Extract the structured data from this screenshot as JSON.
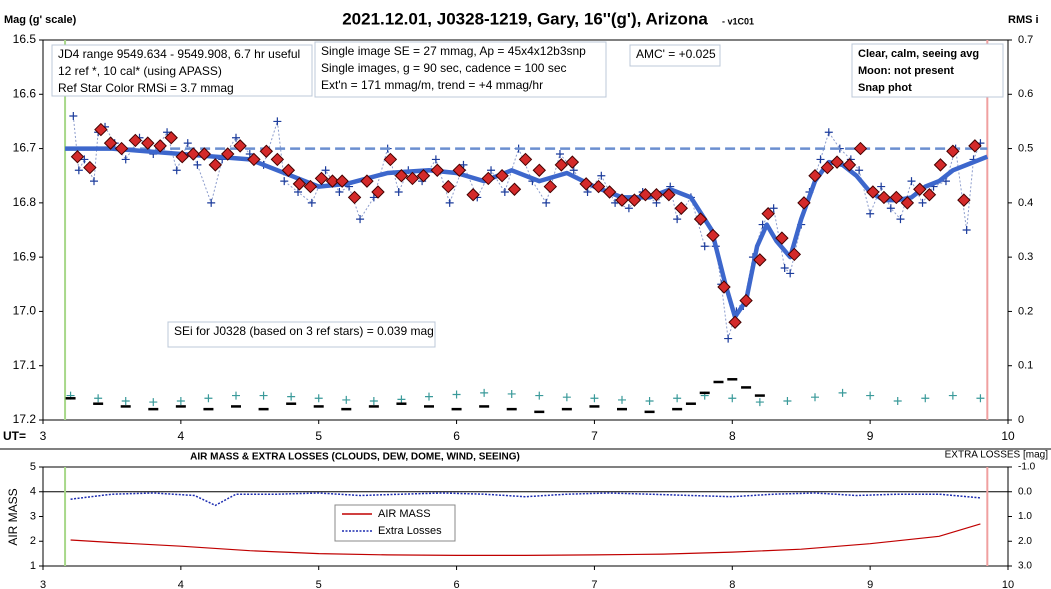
{
  "chart_data": [
    {
      "type": "line",
      "title": "2021.12.01, J0328-1219, Gary, 16''(g'), Arizona",
      "subtitle": "- v1C01",
      "ylabel": "Mag (g' scale)",
      "y2label": "RMS i",
      "xlabel": "UT=",
      "xlim": [
        3,
        10
      ],
      "xticks": [
        3,
        4,
        5,
        6,
        7,
        8,
        9,
        10
      ],
      "ylim": [
        16.5,
        17.2
      ],
      "y_inverted": true,
      "yticks": [
        16.5,
        16.6,
        16.7,
        16.8,
        16.9,
        {
          "value": 17,
          "label": "17.0"
        },
        17.1,
        17.2
      ],
      "y2lim": [
        0,
        0.7
      ],
      "y2ticks": [
        0.7,
        0.6,
        0.5,
        0.4,
        0.3,
        0.2,
        0.1,
        0
      ],
      "vlines": [
        {
          "x": 3.16,
          "color": "#a8d88a"
        },
        {
          "x": 9.85,
          "color": "#f0a0a0"
        }
      ],
      "annotations": [
        [
          "JD4 range 9549.634 - 9549.908, 6.7 hr useful",
          "12 ref *, 10 cal* (using APASS)",
          "Ref Star Color RMSi = 3.7 mmag"
        ],
        [
          "Single image SE = 27 mmag, Ap = 45x4x12b3snp",
          "Single images, g = 90 sec, cadence = 100 sec",
          "Ext'n = 171 mmag/m, trend = +4 mmag/hr"
        ],
        [
          "AMC' = +0.025"
        ],
        [
          "Clear, calm, seeing avg",
          "Moon: not present",
          "Snap phot"
        ],
        [
          "SEi for J0328 (based on 3 ref stars) = 0.039 mag"
        ]
      ],
      "series": [
        {
          "style": "cross-dotted",
          "color": "#1c3c9c",
          "x": [
            3.22,
            3.26,
            3.3,
            3.37,
            3.4,
            3.45,
            3.52,
            3.6,
            3.7,
            3.8,
            3.9,
            3.97,
            4.05,
            4.12,
            4.22,
            4.3,
            4.4,
            4.5,
            4.6,
            4.7,
            4.75,
            4.85,
            4.95,
            5.05,
            5.15,
            5.22,
            5.3,
            5.4,
            5.5,
            5.58,
            5.65,
            5.75,
            5.85,
            5.95,
            6.05,
            6.15,
            6.25,
            6.35,
            6.45,
            6.55,
            6.65,
            6.75,
            6.85,
            6.95,
            7.05,
            7.15,
            7.25,
            7.35,
            7.45,
            7.55,
            7.6,
            7.7,
            7.8,
            7.88,
            7.92,
            7.97,
            8.03,
            8.08,
            8.15,
            8.22,
            8.3,
            8.38,
            8.42,
            8.5,
            8.56,
            8.64,
            8.7,
            8.78,
            8.86,
            8.92,
            9.0,
            9.08,
            9.15,
            9.22,
            9.3,
            9.38,
            9.46,
            9.55,
            9.62,
            9.7,
            9.75,
            9.8
          ],
          "values": [
            16.64,
            16.74,
            16.72,
            16.76,
            16.67,
            16.66,
            16.69,
            16.72,
            16.68,
            16.71,
            16.67,
            16.74,
            16.69,
            16.73,
            16.8,
            16.72,
            16.68,
            16.71,
            16.73,
            16.65,
            16.76,
            16.78,
            16.8,
            16.74,
            16.78,
            16.77,
            16.83,
            16.79,
            16.7,
            16.78,
            16.74,
            16.76,
            16.72,
            16.8,
            16.73,
            16.79,
            16.74,
            16.78,
            16.7,
            16.76,
            16.8,
            16.71,
            16.74,
            16.78,
            16.75,
            16.8,
            16.81,
            16.78,
            16.8,
            16.77,
            16.83,
            16.79,
            16.88,
            16.88,
            16.95,
            17.05,
            17.0,
            16.99,
            16.9,
            16.84,
            16.81,
            16.92,
            16.93,
            16.84,
            16.78,
            16.72,
            16.67,
            16.7,
            16.72,
            16.74,
            16.82,
            16.77,
            16.81,
            16.83,
            16.76,
            16.8,
            16.77,
            16.76,
            16.7,
            16.85,
            16.72,
            16.69
          ]
        },
        {
          "style": "dashed",
          "color": "#6b8fd0",
          "x": [
            3.16,
            9.85
          ],
          "values": [
            16.7,
            16.7
          ]
        },
        {
          "style": "thick",
          "color": "#3d67cc",
          "x": [
            3.16,
            3.5,
            4.0,
            4.5,
            4.8,
            5.0,
            5.2,
            5.5,
            5.8,
            6.0,
            6.2,
            6.4,
            6.6,
            6.8,
            7.0,
            7.2,
            7.4,
            7.55,
            7.7,
            7.85,
            7.95,
            8.02,
            8.1,
            8.18,
            8.25,
            8.32,
            8.42,
            8.5,
            8.6,
            8.7,
            8.8,
            8.9,
            9.0,
            9.1,
            9.2,
            9.3,
            9.4,
            9.5,
            9.6,
            9.7,
            9.85
          ],
          "values": [
            16.7,
            16.7,
            16.71,
            16.72,
            16.75,
            16.77,
            16.765,
            16.745,
            16.74,
            16.745,
            16.76,
            16.74,
            16.76,
            16.745,
            16.77,
            16.79,
            16.79,
            16.775,
            16.79,
            16.85,
            16.95,
            17.01,
            16.98,
            16.88,
            16.84,
            16.87,
            16.9,
            16.83,
            16.76,
            16.725,
            16.73,
            16.75,
            16.78,
            16.795,
            16.795,
            16.79,
            16.77,
            16.76,
            16.74,
            16.73,
            16.715
          ]
        },
        {
          "style": "diamond",
          "color": "#d42a2a",
          "x": [
            3.25,
            3.34,
            3.42,
            3.49,
            3.57,
            3.67,
            3.76,
            3.85,
            3.93,
            4.01,
            4.09,
            4.17,
            4.25,
            4.34,
            4.43,
            4.53,
            4.62,
            4.7,
            4.78,
            4.86,
            4.94,
            5.02,
            5.1,
            5.17,
            5.26,
            5.35,
            5.43,
            5.52,
            5.6,
            5.68,
            5.76,
            5.86,
            5.94,
            6.02,
            6.12,
            6.23,
            6.33,
            6.42,
            6.5,
            6.6,
            6.68,
            6.76,
            6.84,
            6.94,
            7.03,
            7.11,
            7.2,
            7.29,
            7.37,
            7.45,
            7.54,
            7.63,
            7.77,
            7.86,
            7.94,
            8.02,
            8.1,
            8.2,
            8.26,
            8.36,
            8.45,
            8.52,
            8.6,
            8.69,
            8.76,
            8.85,
            8.93,
            9.02,
            9.1,
            9.19,
            9.27,
            9.36,
            9.43,
            9.51,
            9.6,
            9.68,
            9.76
          ],
          "values": [
            16.715,
            16.735,
            16.665,
            16.69,
            16.7,
            16.685,
            16.69,
            16.695,
            16.68,
            16.715,
            16.71,
            16.71,
            16.73,
            16.71,
            16.695,
            16.72,
            16.705,
            16.72,
            16.74,
            16.765,
            16.77,
            16.755,
            16.76,
            16.76,
            16.79,
            16.76,
            16.78,
            16.72,
            16.75,
            16.755,
            16.75,
            16.74,
            16.77,
            16.74,
            16.785,
            16.755,
            16.75,
            16.775,
            16.72,
            16.74,
            16.77,
            16.73,
            16.725,
            16.765,
            16.77,
            16.78,
            16.795,
            16.795,
            16.785,
            16.785,
            16.785,
            16.81,
            16.83,
            16.86,
            16.955,
            17.02,
            16.98,
            16.905,
            16.82,
            16.865,
            16.895,
            16.8,
            16.75,
            16.735,
            16.725,
            16.73,
            16.7,
            16.78,
            16.79,
            16.79,
            16.8,
            16.775,
            16.785,
            16.73,
            16.705,
            16.795,
            16.695
          ]
        },
        {
          "style": "cross",
          "axis": "y2",
          "color": "#3a9a9a",
          "x": [
            3.2,
            3.4,
            3.6,
            3.8,
            4.0,
            4.2,
            4.4,
            4.6,
            4.8,
            5.0,
            5.2,
            5.4,
            5.6,
            5.8,
            6.0,
            6.2,
            6.4,
            6.6,
            6.8,
            7.0,
            7.2,
            7.4,
            7.6,
            7.8,
            8.0,
            8.2,
            8.4,
            8.6,
            8.8,
            9.0,
            9.2,
            9.4,
            9.6,
            9.8
          ],
          "values": [
            0.045,
            0.04,
            0.035,
            0.033,
            0.035,
            0.04,
            0.045,
            0.045,
            0.043,
            0.04,
            0.037,
            0.035,
            0.038,
            0.043,
            0.047,
            0.05,
            0.048,
            0.045,
            0.042,
            0.04,
            0.037,
            0.035,
            0.04,
            0.045,
            0.04,
            0.033,
            0.035,
            0.042,
            0.05,
            0.045,
            0.035,
            0.04,
            0.045,
            0.04
          ]
        },
        {
          "style": "dash",
          "axis": "y2",
          "color": "#000000",
          "x": [
            3.2,
            3.4,
            3.6,
            3.8,
            4.0,
            4.2,
            4.4,
            4.6,
            4.8,
            5.0,
            5.2,
            5.4,
            5.6,
            5.8,
            6.0,
            6.2,
            6.4,
            6.6,
            6.8,
            7.0,
            7.2,
            7.4,
            7.6,
            7.7,
            7.8,
            7.9,
            8.0,
            8.1,
            8.2
          ],
          "values": [
            0.04,
            0.03,
            0.025,
            0.02,
            0.025,
            0.02,
            0.025,
            0.02,
            0.03,
            0.025,
            0.02,
            0.025,
            0.03,
            0.025,
            0.02,
            0.025,
            0.02,
            0.015,
            0.02,
            0.025,
            0.02,
            0.015,
            0.02,
            0.03,
            0.05,
            0.07,
            0.075,
            0.06,
            0.045
          ]
        }
      ]
    },
    {
      "type": "line",
      "title": "AIR MASS & EXTRA LOSSES (CLOUDS, DEW, DOME, WIND, SEEING)",
      "ylabel": "AIR MASS",
      "y2label": "EXTRA LOSSES [mag]",
      "xlim": [
        3,
        10
      ],
      "xticks": [
        3,
        4,
        5,
        6,
        7,
        8,
        9,
        10
      ],
      "ylim": [
        1,
        5
      ],
      "yticks": [
        1,
        2,
        3,
        4,
        5
      ],
      "y2lim": [
        -1,
        3
      ],
      "y2_inverted": true,
      "y2ticks": [
        {
          "value": -1,
          "label": "-1.0"
        },
        {
          "value": 0,
          "label": "0.0"
        },
        {
          "value": 1,
          "label": "1.0"
        },
        {
          "value": 2,
          "label": "2.0"
        },
        {
          "value": 3,
          "label": "3.0"
        }
      ],
      "y2_reference": 0,
      "vlines": [
        {
          "x": 3.16,
          "color": "#a8d88a"
        },
        {
          "x": 9.85,
          "color": "#f0a0a0"
        }
      ],
      "series": [
        {
          "name": "AIR MASS",
          "style": "solid",
          "color": "#c00000",
          "x": [
            3.2,
            3.5,
            4,
            4.5,
            5,
            5.5,
            6,
            6.5,
            7,
            7.5,
            8,
            8.5,
            9,
            9.5,
            9.8
          ],
          "values": [
            2.05,
            1.95,
            1.8,
            1.62,
            1.5,
            1.45,
            1.43,
            1.43,
            1.45,
            1.48,
            1.56,
            1.68,
            1.9,
            2.2,
            2.7
          ]
        },
        {
          "name": "Extra Losses",
          "style": "dotted",
          "axis": "y2",
          "color": "#1c2cb0",
          "x": [
            3.2,
            3.5,
            3.8,
            4.1,
            4.25,
            4.4,
            4.7,
            5.0,
            5.3,
            5.6,
            5.9,
            6.2,
            6.5,
            6.8,
            7.1,
            7.4,
            7.7,
            8.0,
            8.3,
            8.6,
            8.9,
            9.2,
            9.5,
            9.8
          ],
          "values": [
            0.3,
            0.1,
            0.05,
            0.15,
            0.55,
            0.1,
            0.1,
            0.05,
            0.15,
            0.1,
            0.05,
            0.1,
            0.2,
            0.1,
            0.05,
            0.1,
            0.15,
            0.2,
            0.1,
            0.05,
            0.15,
            0.1,
            0.1,
            0.25
          ]
        }
      ]
    }
  ]
}
